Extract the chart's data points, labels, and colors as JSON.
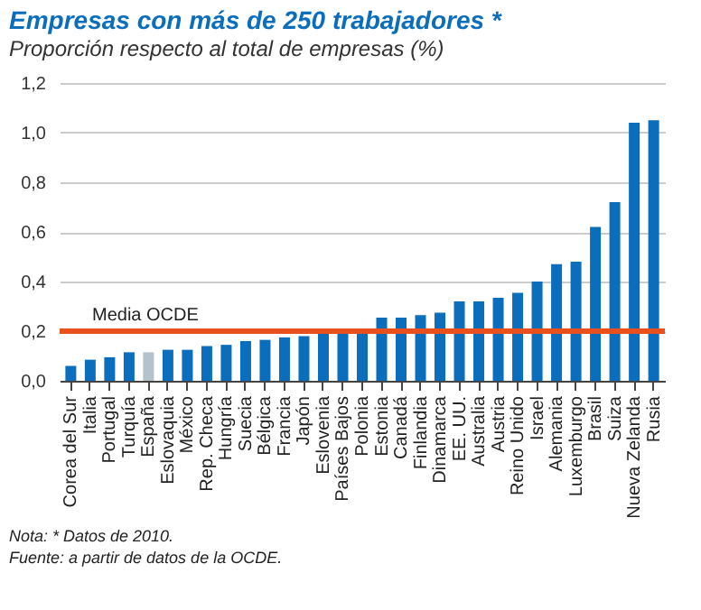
{
  "chart_data": {
    "type": "bar",
    "title": "Empresas con más de 250 trabajadores *",
    "subtitle": "Proporción respecto al total de empresas (%)",
    "categories": [
      "Corea del Sur",
      "Italia",
      "Portugal",
      "Turquía",
      "España",
      "Eslovaquia",
      "México",
      "Rep. Checa",
      "Hungría",
      "Suecia",
      "Bélgica",
      "Francia",
      "Japón",
      "Eslovenia",
      "Países Bajos",
      "Polonia",
      "Estonia",
      "Canadá",
      "Finlandia",
      "Dinamarca",
      "EE. UU.",
      "Australia",
      "Austria",
      "Reino Unido",
      "Israel",
      "Alemania",
      "Luxemburgo",
      "Brasil",
      "Suiza",
      "Nueva Zelanda",
      "Rusia"
    ],
    "values": [
      0.06,
      0.085,
      0.095,
      0.115,
      0.115,
      0.125,
      0.125,
      0.14,
      0.145,
      0.16,
      0.165,
      0.175,
      0.18,
      0.195,
      0.195,
      0.2,
      0.255,
      0.255,
      0.265,
      0.275,
      0.32,
      0.32,
      0.335,
      0.355,
      0.4,
      0.47,
      0.48,
      0.62,
      0.72,
      1.04,
      1.05
    ],
    "colors": [
      "#0a6ebd",
      "#0a6ebd",
      "#0a6ebd",
      "#0a6ebd",
      "#b4c3cb",
      "#0a6ebd",
      "#0a6ebd",
      "#0a6ebd",
      "#0a6ebd",
      "#0a6ebd",
      "#0a6ebd",
      "#0a6ebd",
      "#0a6ebd",
      "#0a6ebd",
      "#0a6ebd",
      "#0a6ebd",
      "#0a6ebd",
      "#0a6ebd",
      "#0a6ebd",
      "#0a6ebd",
      "#0a6ebd",
      "#0a6ebd",
      "#0a6ebd",
      "#0a6ebd",
      "#0a6ebd",
      "#0a6ebd",
      "#0a6ebd",
      "#0a6ebd",
      "#0a6ebd",
      "#0a6ebd",
      "#0a6ebd"
    ],
    "ylim": [
      0,
      1.2
    ],
    "yticks": [
      {
        "value": 0,
        "label": "0,0"
      },
      {
        "value": 0.2,
        "label": "0,2"
      },
      {
        "value": 0.4,
        "label": "0,4"
      },
      {
        "value": 0.6,
        "label": "0,6"
      },
      {
        "value": 0.8,
        "label": "0,8"
      },
      {
        "value": 1.0,
        "label": "1,0"
      },
      {
        "value": 1.2,
        "label": "1,2"
      }
    ],
    "grid": "y",
    "ref_lines": [
      {
        "axis": "y",
        "value": 0.2,
        "label": "Media  OCDE",
        "color": "#e8501e"
      }
    ],
    "annotations": [
      "Nota: * Datos de 2010.",
      "Fuente: a partir de datos de la OCDE."
    ]
  }
}
